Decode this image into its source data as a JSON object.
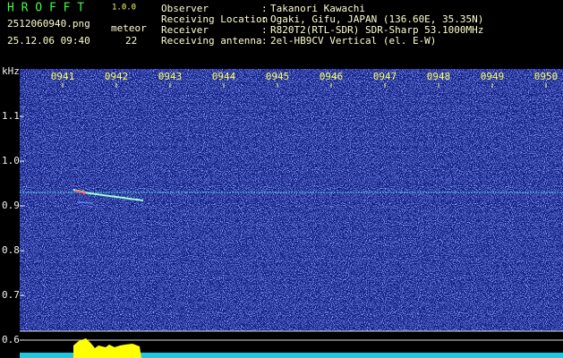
{
  "header": {
    "app_name": "H R O F F T",
    "version": "1.0.0",
    "filename": "2512060940.png",
    "datetime": "25.12.06 09:40",
    "count_label": "meteor",
    "count": 22
  },
  "separator": ":",
  "info": [
    {
      "label": "Observer",
      "value": "Takanori Kawachi"
    },
    {
      "label": "Receiving Location",
      "value": "Ogaki, Gifu, JAPAN (136.60E, 35.35N)"
    },
    {
      "label": "Receiver",
      "value": "R820T2(RTL-SDR) SDR-Sharp 53.1000MHz"
    },
    {
      "label": "Receiving antenna",
      "value": "2el-HB9CV Vertical (el. E-W)"
    }
  ],
  "spectrogram": {
    "unit": "kHz",
    "time_labels": [
      "0941",
      "0942",
      "0943",
      "0944",
      "0945",
      "0946",
      "0947",
      "0948",
      "0949",
      "0950"
    ],
    "freq_labels": [
      "1.1",
      "1.0",
      "0.9",
      "0.8",
      "0.7",
      "0.6"
    ]
  }
}
